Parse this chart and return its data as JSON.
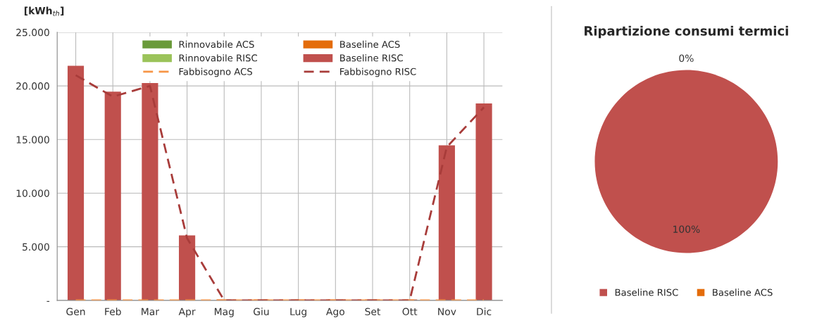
{
  "chart_data": [
    {
      "type": "bar",
      "ylabel": "[kWh$_{th}$]",
      "categories": [
        "Gen",
        "Feb",
        "Mar",
        "Apr",
        "Mag",
        "Giu",
        "Lug",
        "Ago",
        "Set",
        "Ott",
        "Nov",
        "Dic"
      ],
      "series": [
        {
          "name": "Rinnovabile ACS",
          "color": "#6a9a3a",
          "values": [
            null,
            null,
            null,
            null,
            null,
            null,
            null,
            null,
            null,
            null,
            null,
            null
          ]
        },
        {
          "name": "Rinnovabile RISC",
          "color": "#9bc35a",
          "values": [
            null,
            null,
            null,
            null,
            null,
            null,
            null,
            null,
            null,
            null,
            null,
            null
          ]
        },
        {
          "name": "Fabbisogno ACS",
          "type": "line",
          "line_style": "dashed",
          "color": "#f79646",
          "values": [
            0,
            0,
            0,
            0,
            0,
            0,
            0,
            0,
            0,
            0,
            0,
            0
          ]
        },
        {
          "name": "Baseline ACS",
          "color": "#e46c0a",
          "values": [
            0,
            0,
            0,
            0,
            0,
            0,
            0,
            0,
            0,
            0,
            0,
            0
          ]
        },
        {
          "name": "Baseline RISC",
          "color": "#c0504d",
          "values": [
            21800,
            19400,
            20200,
            6000,
            0,
            0,
            0,
            0,
            0,
            0,
            14400,
            18300
          ]
        },
        {
          "name": "Fabbisogno RISC",
          "type": "line",
          "line_style": "dashed",
          "color": "#a83c3a",
          "values": [
            21000,
            19000,
            20000,
            5800,
            0,
            0,
            0,
            0,
            0,
            0,
            14300,
            18000
          ]
        }
      ],
      "ylim": [
        0,
        25000
      ],
      "yticks": [
        {
          "value": 0,
          "label": "-"
        },
        {
          "value": 5000,
          "label": "5.000"
        },
        {
          "value": 10000,
          "label": "10.000"
        },
        {
          "value": 15000,
          "label": "15.000"
        },
        {
          "value": 20000,
          "label": "20.000"
        },
        {
          "value": 25000,
          "label": "25.000"
        }
      ],
      "grid": true,
      "legend": "top"
    },
    {
      "type": "pie",
      "title": "Ripartizione consumi termici",
      "categories": [
        "Baseline RISC",
        "Baseline ACS"
      ],
      "values": [
        100,
        0
      ],
      "colors": [
        "#c0504d",
        "#e46c0a"
      ],
      "value_labels": [
        "100%",
        "0%"
      ],
      "legend": "bottom"
    }
  ]
}
